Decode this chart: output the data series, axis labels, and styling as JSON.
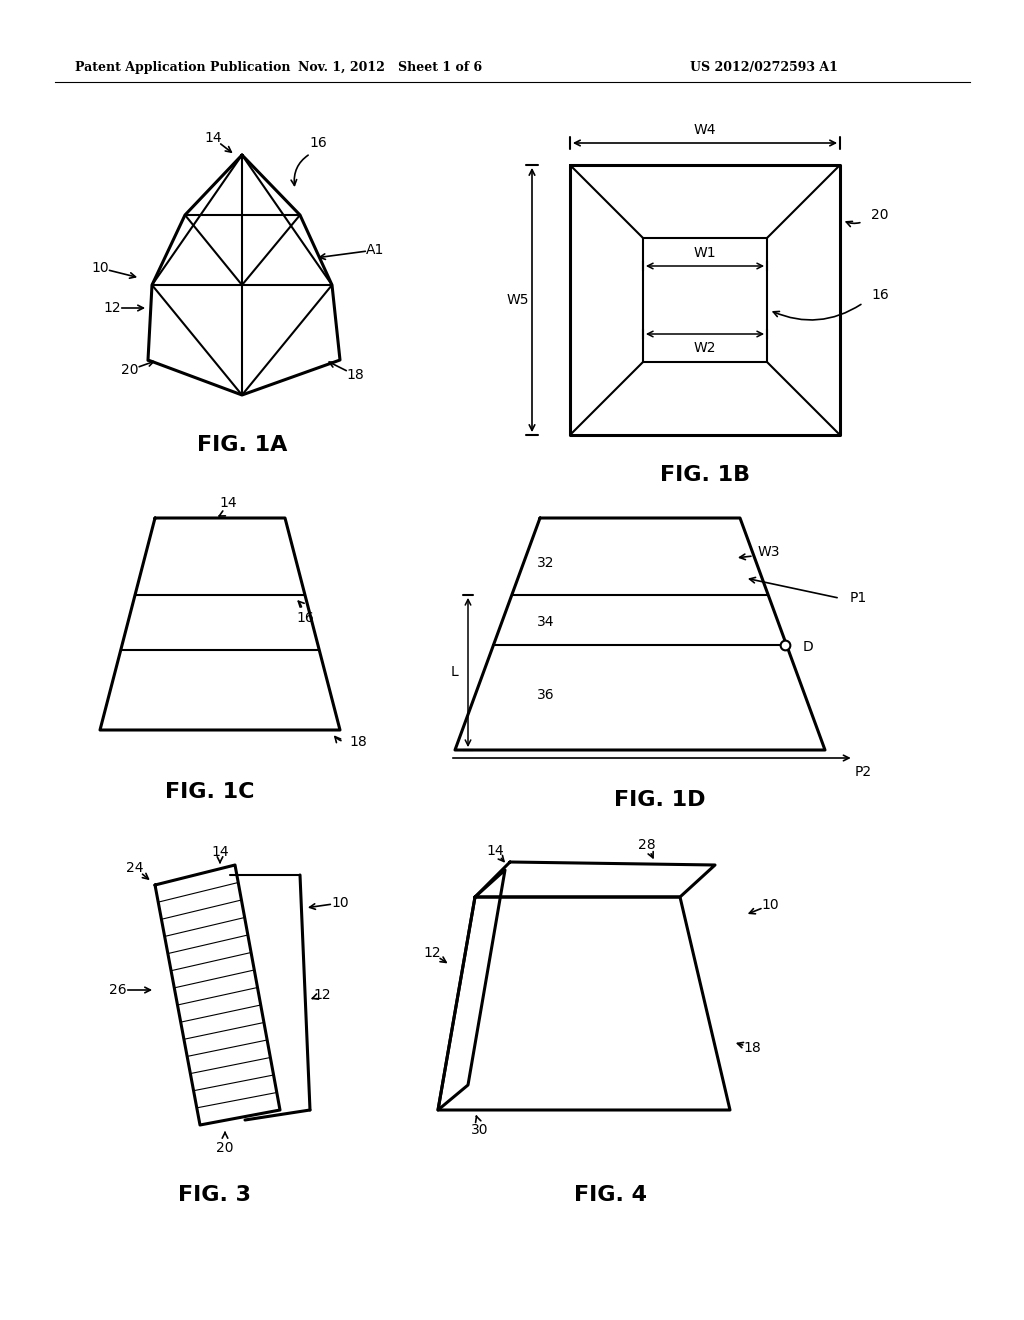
{
  "bg_color": "#ffffff",
  "header_left": "Patent Application Publication",
  "header_mid": "Nov. 1, 2012   Sheet 1 of 6",
  "header_right": "US 2012/0272593 A1"
}
